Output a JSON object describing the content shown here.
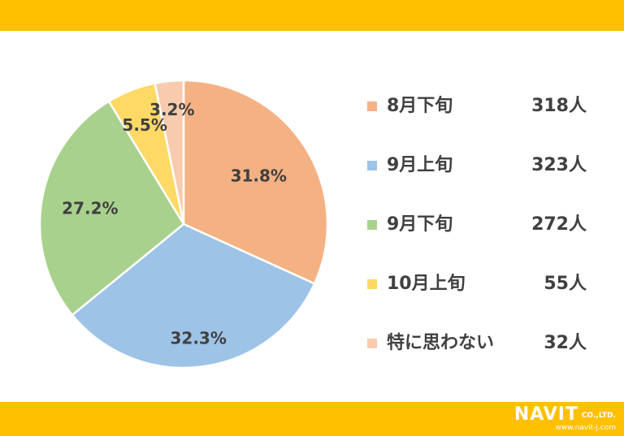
{
  "theme": {
    "band_color": "#FFC000",
    "text_color": "#404040"
  },
  "logo": {
    "word": "NAVIT",
    "suffix": "CO.,LTD.",
    "url": "www.navit-j.com"
  },
  "chart_data": {
    "type": "pie",
    "title": "",
    "legend_position": "right",
    "unit": "人",
    "slices": [
      {
        "label": "8月下旬",
        "value": 318,
        "percent_label": "31.8%",
        "count_label": "318人",
        "color": "#F4B183"
      },
      {
        "label": "9月上旬",
        "value": 323,
        "percent_label": "32.3%",
        "count_label": "323人",
        "color": "#9DC3E6"
      },
      {
        "label": "9月下旬",
        "value": 272,
        "percent_label": "27.2%",
        "count_label": "272人",
        "color": "#A9D18E"
      },
      {
        "label": "10月上旬",
        "value": 55,
        "percent_label": "5.5%",
        "count_label": "55人",
        "color": "#FFD966"
      },
      {
        "label": "特に思わない",
        "value": 32,
        "percent_label": "3.2%",
        "count_label": "32人",
        "color": "#F8CBAD"
      }
    ]
  }
}
